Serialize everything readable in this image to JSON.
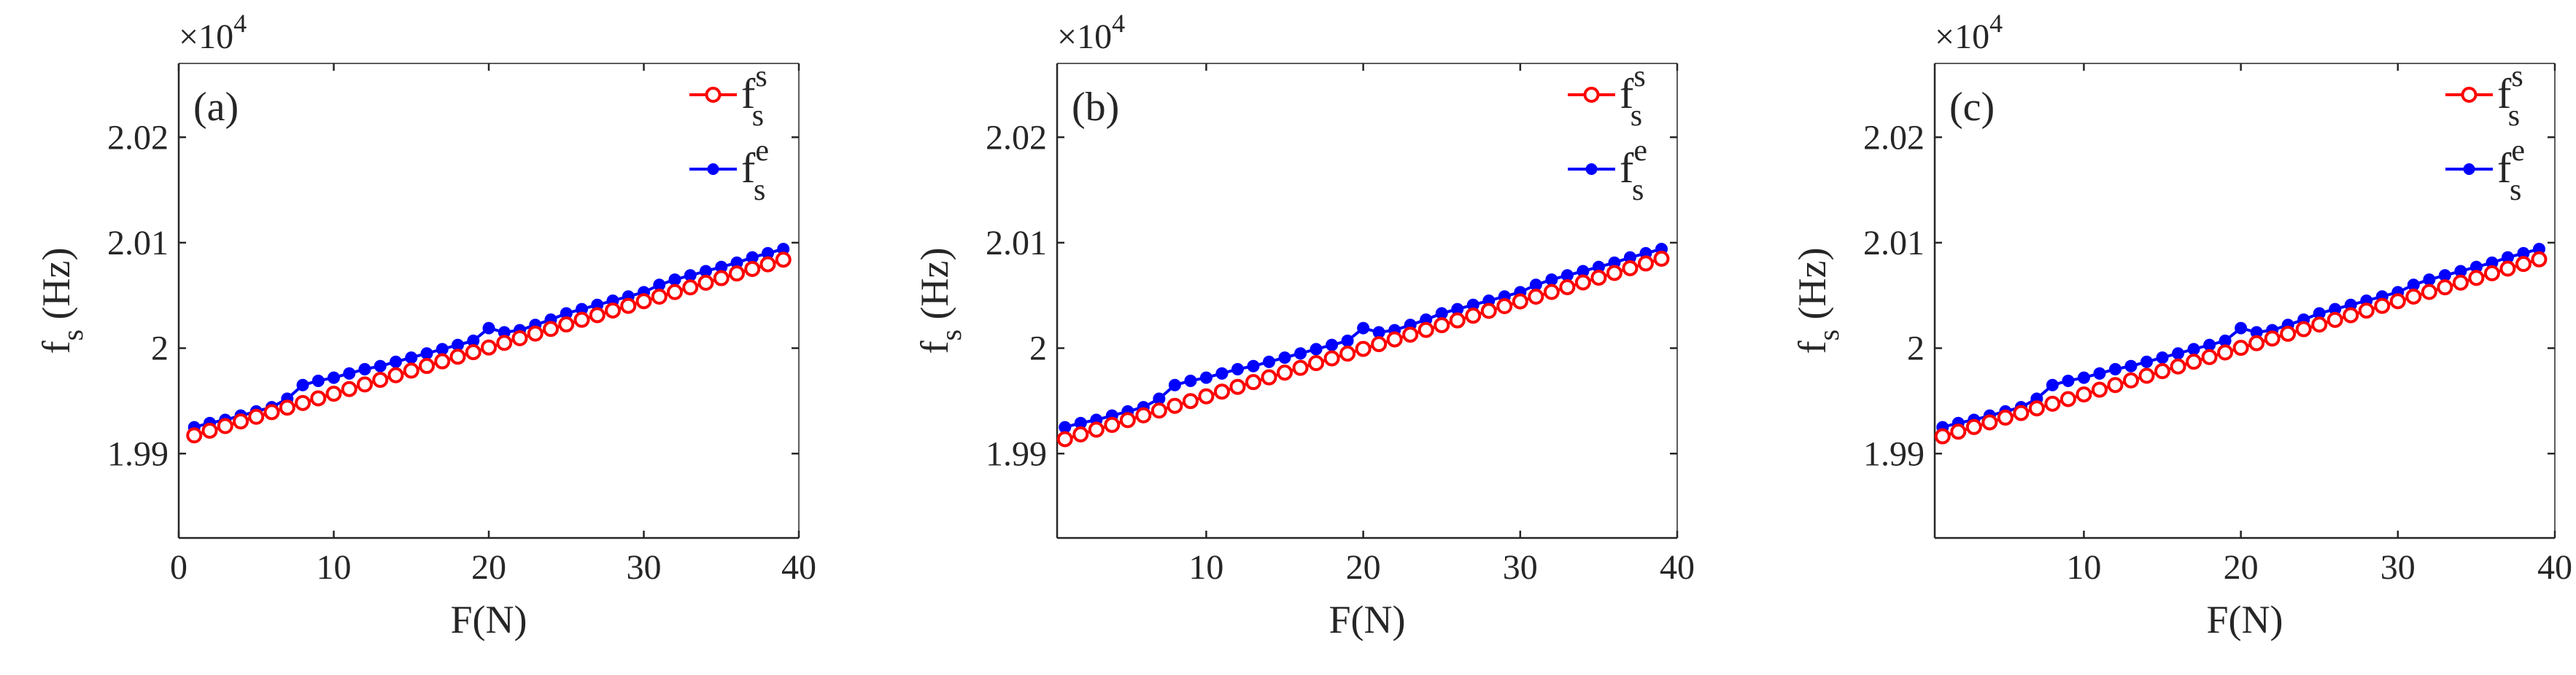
{
  "figure": {
    "x_ticks": [
      "10",
      "20",
      "30",
      "40"
    ],
    "x_zero_tick": "0",
    "y_ticks": [
      "1.99",
      "2",
      "2.01",
      "2.02"
    ],
    "exponent_base": "×10",
    "exponent_power": "4",
    "xlabel": "F(N)",
    "ylabel_main": "f",
    "ylabel_sub": "s",
    "ylabel_unit": " (Hz)"
  },
  "legend": [
    {
      "name": "f",
      "sup": "s",
      "sub": "s",
      "color": "#ff0000",
      "marker": "open-circle"
    },
    {
      "name": "f",
      "sup": "e",
      "sub": "s",
      "color": "#0000ff",
      "marker": "filled-dot"
    }
  ],
  "chart_data": [
    {
      "type": "line",
      "panel": "(a)",
      "xlim": [
        0,
        40
      ],
      "ylim": [
        19820,
        20270
      ],
      "xlabel": "F(N)",
      "ylabel": "fs (Hz)",
      "y_multiplier": "×10^4",
      "x": [
        1,
        2,
        3,
        4,
        5,
        6,
        7,
        8,
        9,
        10,
        11,
        12,
        13,
        14,
        15,
        16,
        17,
        18,
        19,
        20,
        21,
        22,
        23,
        24,
        25,
        26,
        27,
        28,
        29,
        30,
        31,
        32,
        33,
        34,
        35,
        36,
        37,
        38,
        39
      ],
      "series": [
        {
          "name": "f_s^s",
          "color": "#ff0000",
          "marker": "open-circle",
          "values": [
            19917.3,
            19921.7,
            19926.1,
            19930.5,
            19934.9,
            19939.3,
            19943.6,
            19948.0,
            19952.4,
            19956.8,
            19961.2,
            19965.6,
            19969.9,
            19974.3,
            19978.7,
            19983.1,
            19987.5,
            19991.9,
            19996.2,
            20000.6,
            20005.0,
            20009.4,
            20013.8,
            20018.2,
            20022.5,
            20026.9,
            20031.3,
            20035.7,
            20040.1,
            20044.5,
            20048.8,
            20053.2,
            20057.6,
            20062.0,
            20066.4,
            20070.8,
            20075.1,
            20079.5,
            20083.9
          ]
        },
        {
          "name": "f_s^e",
          "color": "#0000ff",
          "marker": "filled-dot",
          "values": [
            19925.0,
            19929.0,
            19932.0,
            19936.0,
            19940.0,
            19944.0,
            19952.0,
            19965.0,
            19969.0,
            19972.0,
            19976.0,
            19980.0,
            19983.0,
            19987.0,
            19991.0,
            19995.0,
            19999.0,
            20003.0,
            20007.0,
            20019.0,
            20015.0,
            20017.0,
            20022.0,
            20027.0,
            20033.0,
            20037.0,
            20041.0,
            20045.0,
            20049.0,
            20053.0,
            20060.0,
            20065.0,
            20069.0,
            20073.0,
            20077.0,
            20081.0,
            20086.0,
            20090.0,
            20094.0
          ]
        }
      ]
    },
    {
      "type": "line",
      "panel": "(b)",
      "xlim": [
        0.5,
        40
      ],
      "ylim": [
        19820,
        20270
      ],
      "xlabel": "F(N)",
      "ylabel": "fs (Hz)",
      "y_multiplier": "×10^4",
      "x": [
        1,
        2,
        3,
        4,
        5,
        6,
        7,
        8,
        9,
        10,
        11,
        12,
        13,
        14,
        15,
        16,
        17,
        18,
        19,
        20,
        21,
        22,
        23,
        24,
        25,
        26,
        27,
        28,
        29,
        30,
        31,
        32,
        33,
        34,
        35,
        36,
        37,
        38,
        39
      ],
      "series": [
        {
          "name": "f_s^s",
          "color": "#ff0000",
          "marker": "open-circle",
          "values": [
            19913.7,
            19918.2,
            19922.7,
            19927.2,
            19931.7,
            19936.3,
            19940.8,
            19945.3,
            19949.8,
            19954.3,
            19958.8,
            19963.3,
            19967.8,
            19972.3,
            19976.8,
            19981.3,
            19985.8,
            19990.3,
            19994.8,
            19999.3,
            20003.8,
            20008.3,
            20012.8,
            20017.3,
            20021.8,
            20026.3,
            20030.8,
            20035.3,
            20039.8,
            20044.3,
            20048.8,
            20053.3,
            20057.8,
            20062.3,
            20066.8,
            20071.3,
            20075.8,
            20080.3,
            20084.8
          ]
        },
        {
          "name": "f_s^e",
          "color": "#0000ff",
          "marker": "filled-dot",
          "values": [
            19925.0,
            19929.0,
            19932.0,
            19936.0,
            19940.0,
            19944.0,
            19952.0,
            19965.0,
            19969.0,
            19972.0,
            19976.0,
            19980.0,
            19983.0,
            19987.0,
            19991.0,
            19995.0,
            19999.0,
            20003.0,
            20007.0,
            20019.0,
            20015.0,
            20017.0,
            20022.0,
            20027.0,
            20033.0,
            20037.0,
            20041.0,
            20045.0,
            20049.0,
            20053.0,
            20060.0,
            20065.0,
            20069.0,
            20073.0,
            20077.0,
            20081.0,
            20086.0,
            20090.0,
            20094.0
          ]
        }
      ]
    },
    {
      "type": "line",
      "panel": "(c)",
      "xlim": [
        0.5,
        40
      ],
      "ylim": [
        19820,
        20270
      ],
      "xlabel": "F(N)",
      "ylabel": "fs (Hz)",
      "y_multiplier": "×10^4",
      "x": [
        1,
        2,
        3,
        4,
        5,
        6,
        7,
        8,
        9,
        10,
        11,
        12,
        13,
        14,
        15,
        16,
        17,
        18,
        19,
        20,
        21,
        22,
        23,
        24,
        25,
        26,
        27,
        28,
        29,
        30,
        31,
        32,
        33,
        34,
        35,
        36,
        37,
        38,
        39
      ],
      "series": [
        {
          "name": "f_s^s",
          "color": "#ff0000",
          "marker": "open-circle",
          "values": [
            19916.4,
            19920.8,
            19925.2,
            19929.6,
            19934.1,
            19938.5,
            19942.9,
            19947.3,
            19951.7,
            19956.1,
            19960.6,
            19965.0,
            19969.4,
            19973.8,
            19978.2,
            19982.6,
            19987.1,
            19991.5,
            19995.9,
            20000.3,
            20004.7,
            20009.1,
            20013.6,
            20018.0,
            20022.4,
            20026.8,
            20031.2,
            20035.6,
            20040.1,
            20044.5,
            20048.9,
            20053.3,
            20057.7,
            20062.1,
            20066.6,
            20071.0,
            20075.4,
            20079.8,
            20084.2
          ]
        },
        {
          "name": "f_s^e",
          "color": "#0000ff",
          "marker": "filled-dot",
          "values": [
            19925.0,
            19929.0,
            19932.0,
            19936.0,
            19940.0,
            19944.0,
            19952.0,
            19965.0,
            19969.0,
            19972.0,
            19976.0,
            19980.0,
            19983.0,
            19987.0,
            19991.0,
            19995.0,
            19999.0,
            20003.0,
            20007.0,
            20019.0,
            20015.0,
            20017.0,
            20022.0,
            20027.0,
            20033.0,
            20037.0,
            20041.0,
            20045.0,
            20049.0,
            20053.0,
            20060.0,
            20065.0,
            20069.0,
            20073.0,
            20077.0,
            20081.0,
            20086.0,
            20090.0,
            20094.0
          ]
        }
      ]
    }
  ]
}
